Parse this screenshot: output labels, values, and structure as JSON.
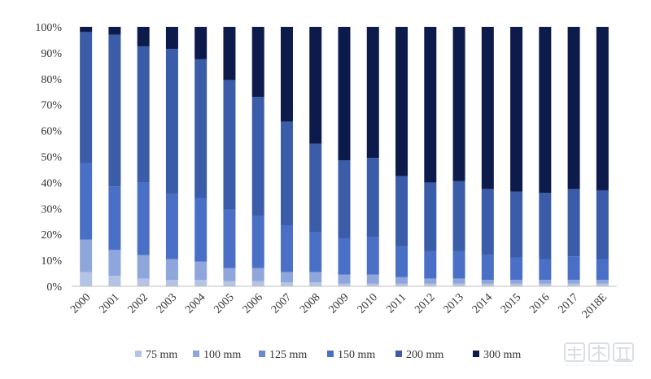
{
  "chart_data": {
    "type": "bar",
    "stacked": true,
    "title": "",
    "xlabel": "",
    "ylabel": "",
    "ylim": [
      0,
      100
    ],
    "y_ticks": [
      "0%",
      "10%",
      "20%",
      "30%",
      "40%",
      "50%",
      "60%",
      "70%",
      "80%",
      "90%",
      "100%"
    ],
    "categories": [
      "2000",
      "2001",
      "2002",
      "2003",
      "2004",
      "2005",
      "2006",
      "2007",
      "2008",
      "2009",
      "2010",
      "2011",
      "2012",
      "2013",
      "2014",
      "2015",
      "2016",
      "2017",
      "2018E"
    ],
    "legend_position": "bottom",
    "grid": false,
    "series": [
      {
        "name": "75 mm",
        "color": "#b4c3e6",
        "values": [
          5.5,
          4,
          3,
          2.5,
          2.5,
          2,
          2,
          1.5,
          1.5,
          1,
          1,
          1,
          1,
          1,
          1,
          1,
          1,
          1,
          1
        ]
      },
      {
        "name": "100 mm",
        "color": "#8ea6db",
        "values": [
          12.5,
          10,
          9,
          8,
          7,
          5,
          5,
          4,
          4,
          3.5,
          3.5,
          2.5,
          2,
          2,
          1.5,
          1.5,
          1.5,
          1.5,
          1.5
        ]
      },
      {
        "name": "125 mm",
        "color": "#6a89d2",
        "values": [
          0,
          0,
          0,
          0,
          0,
          0,
          0,
          0,
          0,
          0,
          0,
          0,
          0,
          0,
          0,
          0,
          0,
          0,
          0
        ]
      },
      {
        "name": "150 mm",
        "color": "#4a6fc6",
        "values": [
          29.5,
          24.5,
          28,
          25,
          24.5,
          22.5,
          20,
          18,
          15.5,
          14,
          14.5,
          12,
          10.5,
          10.5,
          9.5,
          8.5,
          8,
          9,
          8
        ]
      },
      {
        "name": "200 mm",
        "color": "#3b5ca8",
        "values": [
          50.5,
          58.5,
          52.5,
          56,
          53.5,
          50,
          46,
          40,
          34,
          30,
          30.5,
          27,
          26.5,
          27,
          25.5,
          25.5,
          25.5,
          26,
          26.5
        ]
      },
      {
        "name": "300 mm",
        "color": "#0d1b4c",
        "values": [
          2,
          3,
          7.5,
          8.5,
          12.5,
          20.5,
          27,
          36.5,
          45,
          51.5,
          50.5,
          57.5,
          60,
          59.5,
          62.5,
          63.5,
          64,
          62.5,
          63
        ]
      }
    ]
  }
}
